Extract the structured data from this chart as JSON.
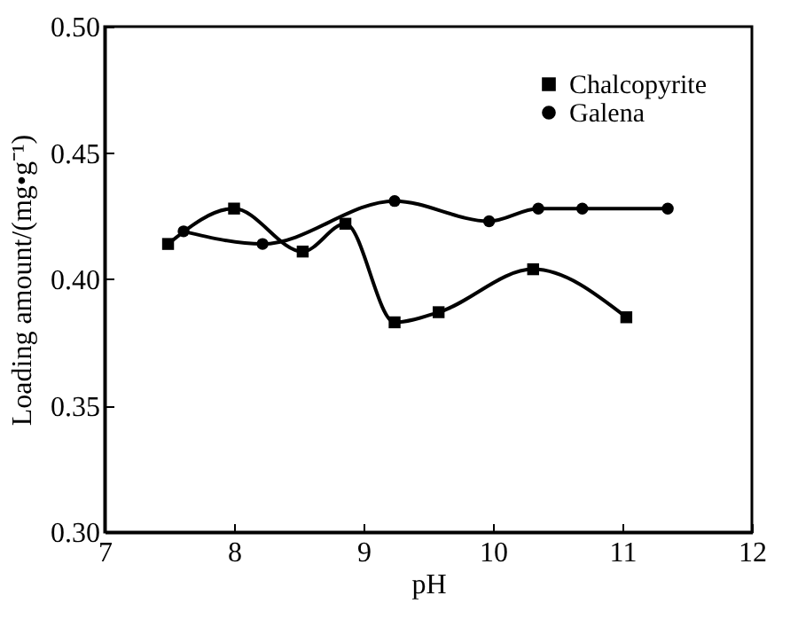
{
  "chart_data": {
    "type": "line",
    "xlabel": "pH",
    "ylabel": "Loading amount/(mg•g⁻¹)",
    "xlim": [
      7,
      12
    ],
    "xticks": [
      7,
      8,
      9,
      10,
      11,
      12
    ],
    "ylim": [
      0.3,
      0.5
    ],
    "yticks": [
      {
        "value": 0.3,
        "label": "0.30"
      },
      0.35,
      {
        "value": 0.4,
        "label": "0.40"
      },
      0.45,
      {
        "value": 0.5,
        "label": "0.50"
      }
    ],
    "legend": "top right",
    "line_style": "solid",
    "series": [
      {
        "name": "Chalcopyrite",
        "color": "#000000",
        "marker": "square",
        "x": [
          7.49,
          8.0,
          8.53,
          8.86,
          9.24,
          9.58,
          10.31,
          11.03
        ],
        "values": [
          0.414,
          0.428,
          0.411,
          0.422,
          0.383,
          0.387,
          0.404,
          0.385
        ]
      },
      {
        "name": "Galena",
        "color": "#000000",
        "marker": "circle",
        "x": [
          7.61,
          8.22,
          9.24,
          9.97,
          10.35,
          10.69,
          11.35
        ],
        "values": [
          0.419,
          0.414,
          0.431,
          0.423,
          0.428,
          0.428,
          0.428
        ]
      }
    ]
  }
}
